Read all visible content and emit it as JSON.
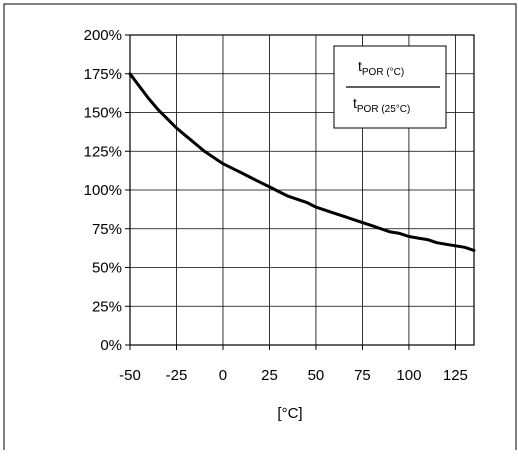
{
  "chart_data": {
    "type": "line",
    "title": "",
    "xlabel": "[°C]",
    "ylabel": "",
    "xlim": [
      -50,
      135
    ],
    "ylim": [
      0,
      200
    ],
    "grid": true,
    "legend_placement": "top-right",
    "x_ticks": [
      -50,
      -25,
      0,
      25,
      50,
      75,
      100,
      125
    ],
    "x_tick_labels": [
      "-50",
      "-25",
      "0",
      "25",
      "50",
      "75",
      "100",
      "125"
    ],
    "y_ticks": [
      0,
      25,
      50,
      75,
      100,
      125,
      150,
      175,
      200
    ],
    "y_tick_labels": [
      "0%",
      "25%",
      "50%",
      "75%",
      "100%",
      "125%",
      "150%",
      "175%",
      "200%"
    ],
    "legend": {
      "numerator_main": "t",
      "numerator_sub": "POR (°C)",
      "denominator_main": "t",
      "denominator_sub": "POR (25°C)"
    },
    "series": [
      {
        "x": [
          -50,
          -45,
          -40,
          -35,
          -30,
          -25,
          -20,
          -15,
          -10,
          -5,
          0,
          5,
          10,
          15,
          20,
          25,
          30,
          35,
          40,
          45,
          50,
          55,
          60,
          65,
          70,
          75,
          80,
          85,
          90,
          95,
          100,
          105,
          110,
          115,
          120,
          125,
          130,
          135
        ],
        "values": [
          175,
          167,
          159,
          152,
          146,
          140,
          135,
          130,
          125,
          121,
          117,
          114,
          111,
          108,
          105,
          102,
          99,
          96,
          94,
          92,
          89,
          87,
          85,
          83,
          81,
          79,
          77,
          75,
          73,
          72,
          70,
          69,
          68,
          66,
          65,
          64,
          63,
          61
        ]
      }
    ],
    "colors": {
      "line": "#000000",
      "grid": "#000000",
      "frame": "#000000"
    }
  }
}
